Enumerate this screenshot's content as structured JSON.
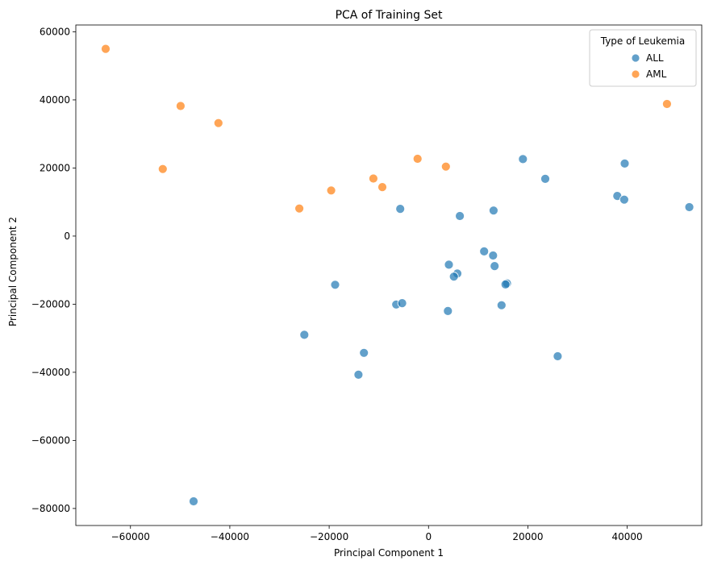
{
  "chart_data": {
    "type": "scatter",
    "title": "PCA of Training Set",
    "xlabel": "Principal Component 1",
    "ylabel": "Principal Component 2",
    "xlim": [
      -71000,
      55000
    ],
    "ylim": [
      -85000,
      62000
    ],
    "xticks": [
      -60000,
      -40000,
      -20000,
      0,
      20000,
      40000
    ],
    "yticks": [
      -80000,
      -60000,
      -40000,
      -20000,
      0,
      20000,
      40000,
      60000
    ],
    "tick_labels": {
      "x": [
        "−60000",
        "−40000",
        "−20000",
        "0",
        "20000",
        "40000"
      ],
      "y": [
        "−80000",
        "−60000",
        "−40000",
        "−20000",
        "0",
        "20000",
        "40000",
        "60000"
      ]
    },
    "grid": false,
    "legend": {
      "title": "Type of Leukemia",
      "position": "top-right"
    },
    "series": [
      {
        "name": "ALL",
        "color": "#1f77b4",
        "points": [
          [
            19000,
            22600
          ],
          [
            23500,
            16800
          ],
          [
            39500,
            21300
          ],
          [
            38000,
            11800
          ],
          [
            39400,
            10700
          ],
          [
            52500,
            8500
          ],
          [
            -5700,
            8000
          ],
          [
            6300,
            5900
          ],
          [
            13100,
            7500
          ],
          [
            11200,
            -4500
          ],
          [
            13000,
            -5700
          ],
          [
            4100,
            -8400
          ],
          [
            13300,
            -8800
          ],
          [
            5800,
            -11000
          ],
          [
            5100,
            -11900
          ],
          [
            15800,
            -13900
          ],
          [
            15500,
            -14200
          ],
          [
            -18800,
            -14300
          ],
          [
            -6500,
            -20100
          ],
          [
            -5300,
            -19700
          ],
          [
            14700,
            -20300
          ],
          [
            3900,
            -22000
          ],
          [
            -25000,
            -29000
          ],
          [
            -13000,
            -34300
          ],
          [
            26000,
            -35300
          ],
          [
            -14100,
            -40700
          ],
          [
            -47300,
            -77900
          ]
        ]
      },
      {
        "name": "AML",
        "color": "#ff7f0e",
        "points": [
          [
            -65000,
            55000
          ],
          [
            -49900,
            38200
          ],
          [
            -42300,
            33200
          ],
          [
            -53500,
            19700
          ],
          [
            -26000,
            8100
          ],
          [
            -19600,
            13400
          ],
          [
            -11100,
            16900
          ],
          [
            -9300,
            14400
          ],
          [
            -2200,
            22700
          ],
          [
            3500,
            20400
          ],
          [
            48000,
            38800
          ]
        ]
      }
    ]
  }
}
